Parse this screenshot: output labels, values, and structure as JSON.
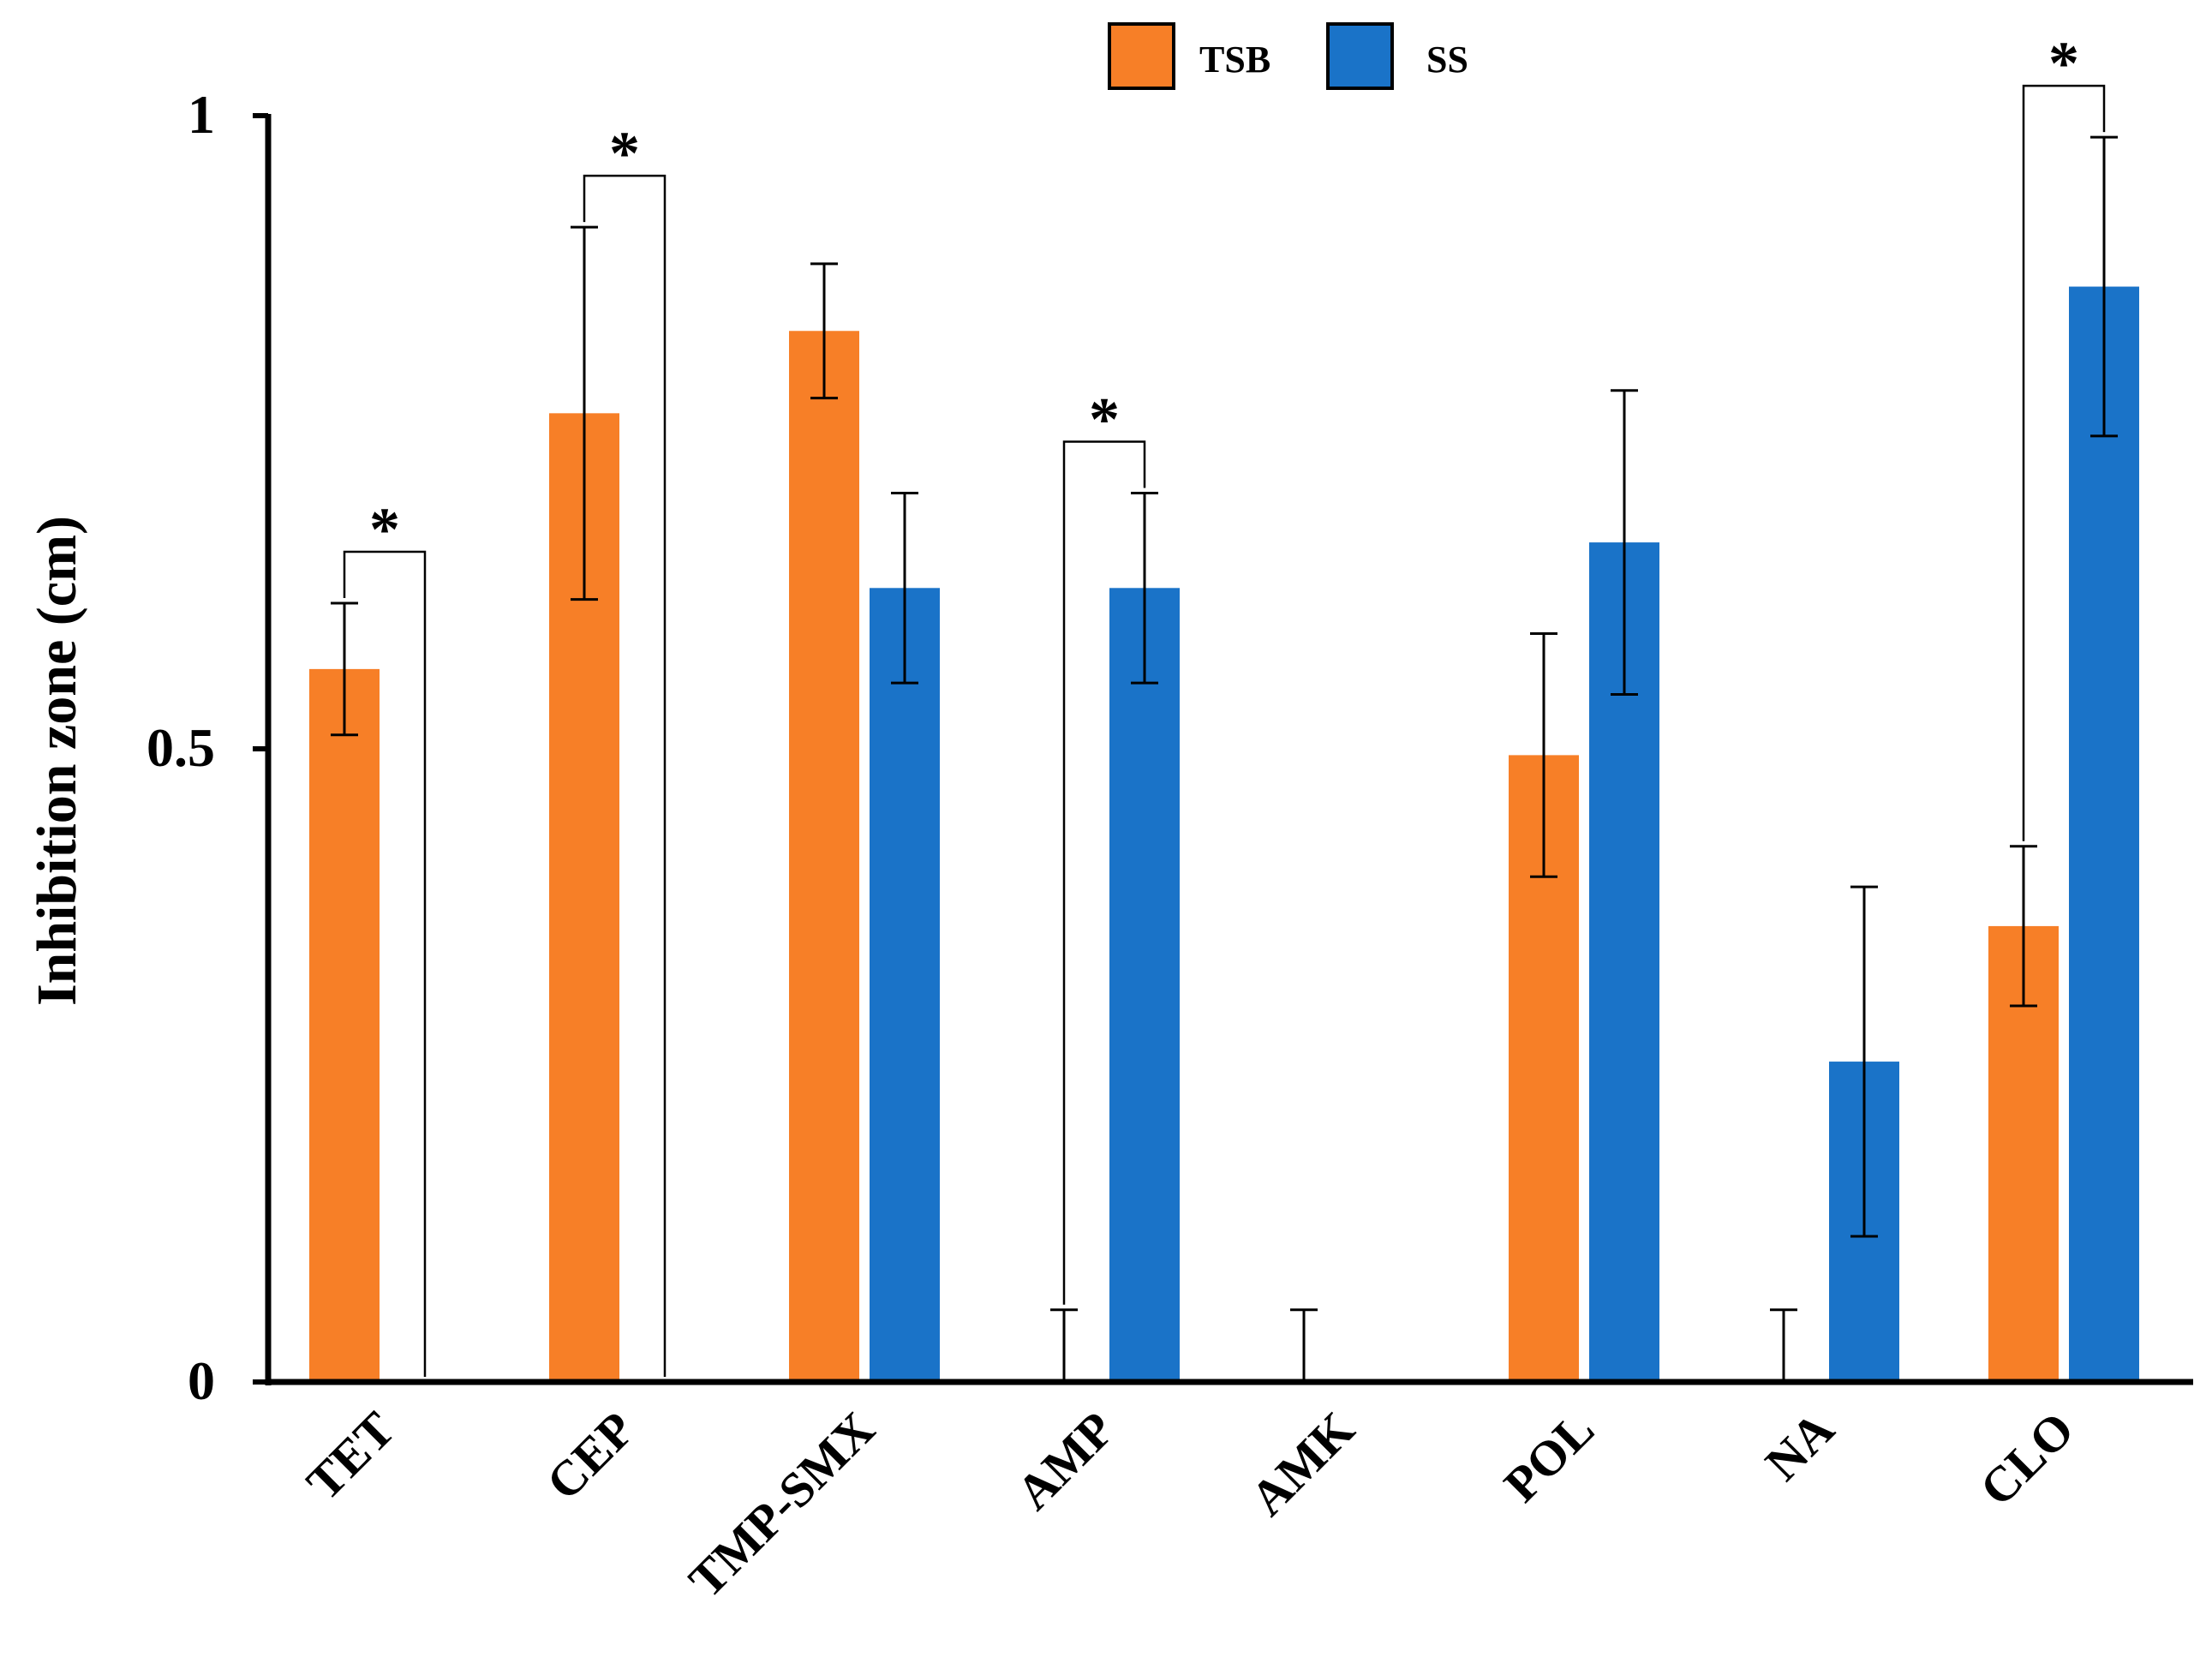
{
  "chart_data": {
    "type": "bar",
    "title": "",
    "xlabel": "",
    "ylabel": "Inhibition zone (cm)",
    "ylim": [
      0,
      1
    ],
    "yticks": [
      {
        "value": 0,
        "label": "0"
      },
      {
        "value": 0.5,
        "label": "0.5"
      },
      {
        "value": 1,
        "label": "1"
      }
    ],
    "grid": false,
    "legend_position": "top-center",
    "categories": [
      "TET",
      "CEP",
      "TMP-SMX",
      "AMP",
      "AMK",
      "POL",
      "NA",
      "CLO"
    ],
    "series": [
      {
        "name": "TSB",
        "color": "#F77F27",
        "values": [
          0.563,
          0.765,
          0.83,
          0,
          0,
          0.495,
          0,
          0.36
        ],
        "errors": [
          0.052,
          0.147,
          0.053,
          0.057,
          0.057,
          0.096,
          0.057,
          0.063
        ]
      },
      {
        "name": "SS",
        "color": "#1A73C8",
        "values": [
          0,
          0,
          0.627,
          0.627,
          0,
          0.663,
          0.253,
          0.865
        ],
        "errors": [
          0,
          0,
          0.075,
          0.075,
          0,
          0.12,
          0.138,
          0.118
        ]
      }
    ],
    "significance": [
      {
        "category": "TET",
        "label": "*"
      },
      {
        "category": "CEP",
        "label": "*"
      },
      {
        "category": "AMP",
        "label": "*"
      },
      {
        "category": "CLO",
        "label": "*"
      }
    ]
  }
}
